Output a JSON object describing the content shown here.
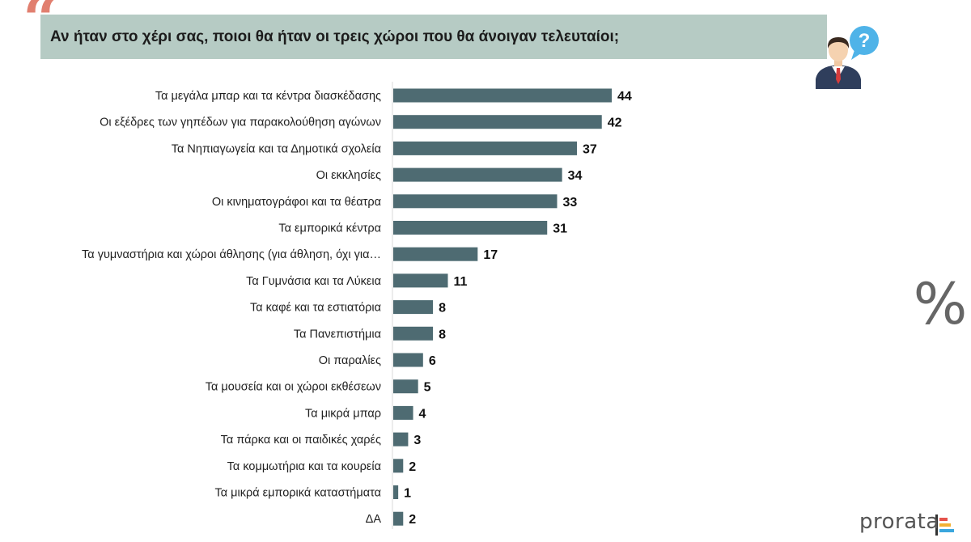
{
  "header": {
    "title": "Αν ήταν στο χέρι σας, ποιοι θα ήταν οι τρεις χώροι που θα άνοιγαν τελευταίοι;",
    "quote_icon": "quote-mark-icon",
    "person_icon": "businessman-question-icon"
  },
  "side": {
    "percent_symbol": "%"
  },
  "brand": {
    "name": "prorata",
    "logo_icon": "prorata-bars-icon"
  },
  "colors": {
    "bar": "#4e6b72",
    "title_band": "#b6cbc4",
    "quote": "#e17f6f"
  },
  "chart_data": {
    "type": "bar",
    "orientation": "horizontal",
    "categories": [
      "Τα μεγάλα μπαρ και τα κέντρα διασκέδασης",
      "Οι εξέδρες των γηπέδων για παρακολούθηση αγώνων",
      "Τα Νηπιαγωγεία και τα Δημοτικά σχολεία",
      "Οι εκκλησίες",
      "Οι κινηματογράφοι και τα θέατρα",
      "Τα εμπορικά κέντρα",
      "Τα γυμναστήρια και χώροι άθλησης (για άθληση, όχι για…",
      "Τα Γυμνάσια και τα Λύκεια",
      "Τα καφέ και τα εστιατόρια",
      "Τα Πανεπιστήμια",
      "Οι παραλίες",
      "Τα μουσεία και οι χώροι εκθέσεων",
      "Τα μικρά μπαρ",
      "Τα πάρκα και οι παιδικές χαρές",
      "Τα κομμωτήρια και τα κουρεία",
      "Τα μικρά εμπορικά καταστήματα",
      "ΔΑ"
    ],
    "values": [
      44,
      42,
      37,
      34,
      33,
      31,
      17,
      11,
      8,
      8,
      6,
      5,
      4,
      3,
      2,
      1,
      2
    ],
    "title": "Αν ήταν στο χέρι σας, ποιοι θα ήταν οι τρεις χώροι που θα άνοιγαν τελευταίοι;",
    "xlabel": "",
    "ylabel": "",
    "xlim": [
      0,
      44
    ],
    "grid": false,
    "data_labels": true
  }
}
